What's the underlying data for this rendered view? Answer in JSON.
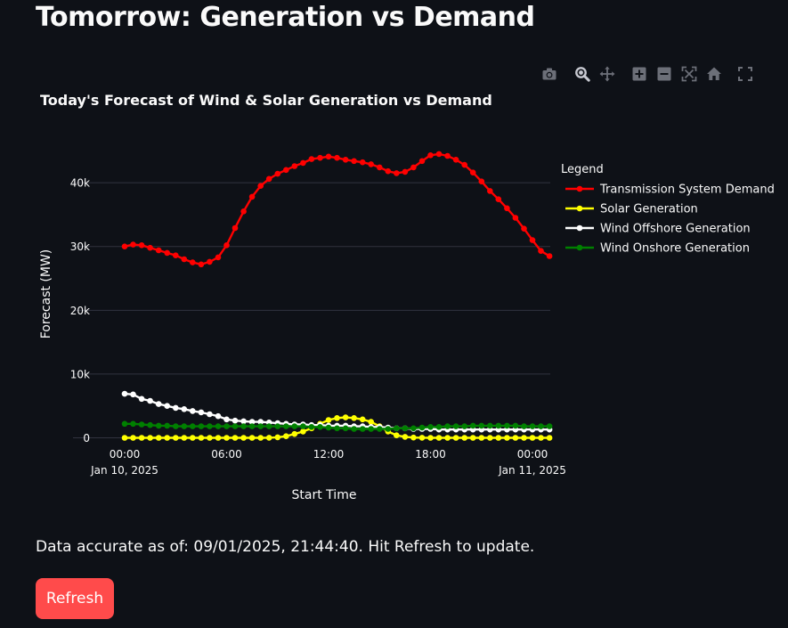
{
  "page": {
    "title": "Tomorrow: Generation vs Demand",
    "status_text": "Data accurate as of: 09/01/2025, 21:44:40. Hit Refresh to update.",
    "refresh_label": "Refresh"
  },
  "modebar": {
    "icons": [
      "camera-icon",
      "zoom-icon",
      "pan-icon",
      "zoom-in-icon",
      "zoom-out-icon",
      "autoscale-icon",
      "home-icon",
      "fullscreen-icon"
    ]
  },
  "colors": {
    "background": "#0e1117",
    "grid": "#31333f",
    "text": "#fafafa",
    "demand": "#ff0000",
    "solar": "#ffff00",
    "offshore": "#ffffff",
    "onshore": "#008000",
    "button": "#ff4b4b"
  },
  "chart_data": {
    "type": "line",
    "title": "Today's Forecast of Wind & Solar Generation vs Demand",
    "xlabel": "Start Time",
    "ylabel": "Forecast (MW)",
    "x_range": [
      "2025-01-10 00:00",
      "2025-01-11 00:00"
    ],
    "x_step_minutes": 30,
    "x_ticks": [
      {
        "time": "00:00",
        "line1": "00:00",
        "line2": "Jan 10, 2025"
      },
      {
        "time": "06:00",
        "line1": "06:00",
        "line2": ""
      },
      {
        "time": "12:00",
        "line1": "12:00",
        "line2": ""
      },
      {
        "time": "18:00",
        "line1": "18:00",
        "line2": ""
      },
      {
        "time": "24:00",
        "line1": "00:00",
        "line2": "Jan 11, 2025"
      }
    ],
    "y_ticks": [
      {
        "value": 0,
        "label": "0"
      },
      {
        "value": 10000,
        "label": "10k"
      },
      {
        "value": 20000,
        "label": "20k"
      },
      {
        "value": 30000,
        "label": "30k"
      },
      {
        "value": 40000,
        "label": "40k"
      }
    ],
    "ylim": [
      -3000,
      47000
    ],
    "grid": true,
    "legend": {
      "title": "Legend",
      "placement": "right"
    },
    "series": [
      {
        "name": "Transmission System Demand",
        "color": "#ff0000",
        "values": [
          30000,
          30300,
          30200,
          29800,
          29400,
          29000,
          28600,
          28000,
          27500,
          27200,
          27600,
          28300,
          30200,
          32900,
          35500,
          37800,
          39500,
          40600,
          41400,
          42000,
          42600,
          43100,
          43700,
          43900,
          44100,
          43900,
          43600,
          43400,
          43200,
          42900,
          42400,
          41800,
          41500,
          41700,
          42400,
          43400,
          44300,
          44500,
          44200,
          43600,
          42800,
          41600,
          40200,
          38700,
          37400,
          36000,
          34500,
          32800,
          31000,
          29300,
          28500
        ]
      },
      {
        "name": "Solar Generation",
        "color": "#ffff00",
        "values": [
          0,
          0,
          0,
          0,
          0,
          0,
          0,
          0,
          0,
          0,
          0,
          0,
          0,
          0,
          0,
          0,
          0,
          20,
          80,
          250,
          600,
          1000,
          1500,
          2200,
          2800,
          3100,
          3200,
          3100,
          2900,
          2500,
          1800,
          1000,
          400,
          150,
          50,
          20,
          0,
          0,
          0,
          0,
          0,
          0,
          0,
          0,
          0,
          0,
          0,
          0,
          0,
          0,
          0
        ]
      },
      {
        "name": "Wind Offshore Generation",
        "color": "#ffffff",
        "values": [
          6900,
          6800,
          6100,
          5800,
          5300,
          5000,
          4700,
          4500,
          4200,
          4000,
          3700,
          3400,
          2900,
          2700,
          2600,
          2500,
          2500,
          2400,
          2300,
          2200,
          2100,
          2100,
          2000,
          2000,
          1900,
          1900,
          1900,
          1800,
          1800,
          1700,
          1700,
          1600,
          1500,
          1500,
          1400,
          1400,
          1400,
          1300,
          1300,
          1300,
          1300,
          1300,
          1300,
          1300,
          1300,
          1300,
          1300,
          1300,
          1300,
          1300,
          1300
        ]
      },
      {
        "name": "Wind Onshore Generation",
        "color": "#008000",
        "values": [
          2200,
          2200,
          2100,
          2000,
          1900,
          1900,
          1800,
          1800,
          1800,
          1800,
          1800,
          1800,
          1800,
          1800,
          1800,
          1800,
          1800,
          1800,
          1800,
          1800,
          1800,
          1800,
          1700,
          1700,
          1600,
          1500,
          1500,
          1400,
          1400,
          1400,
          1400,
          1400,
          1500,
          1500,
          1500,
          1600,
          1700,
          1700,
          1800,
          1800,
          1800,
          1900,
          1900,
          1900,
          1900,
          1900,
          1900,
          1800,
          1800,
          1800,
          1800
        ]
      }
    ]
  }
}
